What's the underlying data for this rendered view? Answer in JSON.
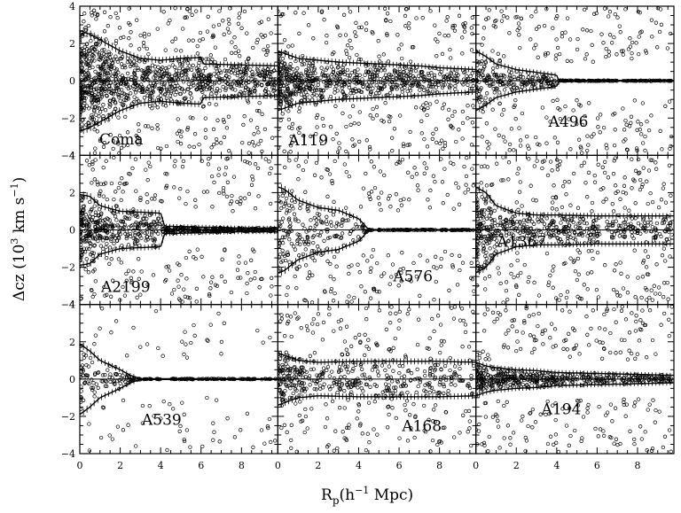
{
  "chart_data": {
    "type": "scatter",
    "layout": "3x3 grid of panels sharing axes",
    "xlabel": "R",
    "xlabel_subscript": "p",
    "xlabel_rest": "(h",
    "xlabel_sup": "−1",
    "xlabel_end": " Mpc)",
    "ylabel": "Δcz (10",
    "ylabel_sup1": "3",
    "ylabel_mid": " km s",
    "ylabel_sup2": "−1",
    "ylabel_end": ")",
    "xlim": [
      0,
      9.8
    ],
    "ylim": [
      -4,
      4
    ],
    "x_ticks": [
      "0",
      "2",
      "4",
      "6",
      "8"
    ],
    "y_ticks": [
      "4",
      "2",
      "0",
      "−2",
      "−4"
    ],
    "y_tick_values": [
      4,
      2,
      0,
      -2,
      -4
    ],
    "x_tick_values": [
      0,
      2,
      4,
      6,
      8
    ],
    "grid": false,
    "marker": "open circle",
    "panels": [
      {
        "name": "Coma",
        "label_pos": "mid-left",
        "caustic_r": [
          0,
          0.5,
          1,
          2,
          3,
          4,
          5,
          6,
          6.1,
          8,
          9.8
        ],
        "caustic_a": [
          2.7,
          2.5,
          2.2,
          1.6,
          1.2,
          1.1,
          1.2,
          1.25,
          0.9,
          0.85,
          0.8
        ],
        "point_count": 900,
        "bg_count": 260
      },
      {
        "name": "A119",
        "label_pos": "bottom-left",
        "caustic_r": [
          0,
          0.5,
          1,
          2,
          3,
          4,
          5,
          6,
          7,
          8,
          9.8
        ],
        "caustic_a": [
          1.6,
          1.4,
          1.2,
          1.1,
          1.0,
          0.95,
          0.9,
          0.85,
          0.8,
          0.7,
          0.6
        ],
        "point_count": 650,
        "bg_count": 220
      },
      {
        "name": "A496",
        "label_pos": "right",
        "caustic_r": [
          0,
          0.5,
          1,
          2,
          3,
          4,
          4.1,
          9.8
        ],
        "caustic_a": [
          1.6,
          1.3,
          0.9,
          0.6,
          0.45,
          0.3,
          0.02,
          0.02
        ],
        "point_count": 300,
        "bg_count": 230
      },
      {
        "name": "A2199",
        "label_pos": "bottom-left",
        "caustic_r": [
          0,
          0.5,
          1,
          2,
          3,
          4,
          4.2,
          6,
          8,
          9.8
        ],
        "caustic_a": [
          1.9,
          1.8,
          1.3,
          1.0,
          0.95,
          0.9,
          0.2,
          0.15,
          0.1,
          0.1
        ],
        "point_count": 600,
        "bg_count": 220
      },
      {
        "name": "A576",
        "label_pos": "bottom-right",
        "caustic_r": [
          0,
          0.3,
          1,
          2,
          3,
          4,
          4.5,
          9.8
        ],
        "caustic_a": [
          2.3,
          2.2,
          1.6,
          1.2,
          1.05,
          0.6,
          0.02,
          0.02
        ],
        "point_count": 260,
        "bg_count": 200
      },
      {
        "name": "A1367",
        "label_pos": "bottom-right",
        "caustic_r": [
          0,
          0.5,
          1,
          2,
          3,
          4,
          6,
          8,
          9.8
        ],
        "caustic_a": [
          2.3,
          2.0,
          1.3,
          0.9,
          0.8,
          0.8,
          0.75,
          0.75,
          0.75
        ],
        "point_count": 500,
        "bg_count": 230
      },
      {
        "name": "A539",
        "label_pos": "bottom-mid",
        "caustic_r": [
          0,
          0.5,
          1,
          2,
          2.5,
          3,
          9.8
        ],
        "caustic_a": [
          1.9,
          1.5,
          1.0,
          0.5,
          0.2,
          0.02,
          0.02
        ],
        "point_count": 200,
        "bg_count": 80
      },
      {
        "name": "A168",
        "label_pos": "bottom-right",
        "caustic_r": [
          0,
          0.5,
          1,
          2,
          4,
          6,
          8,
          9.8
        ],
        "caustic_a": [
          1.4,
          1.2,
          1.0,
          0.9,
          0.95,
          0.95,
          0.95,
          0.9
        ],
        "point_count": 380,
        "bg_count": 200
      },
      {
        "name": "A194",
        "label_pos": "bottom-mid",
        "caustic_r": [
          0,
          0.5,
          1,
          2,
          3,
          4,
          6,
          8,
          9.8
        ],
        "caustic_a": [
          0.9,
          0.7,
          0.6,
          0.5,
          0.45,
          0.35,
          0.3,
          0.25,
          0.2
        ],
        "point_count": 450,
        "bg_count": 230
      }
    ]
  }
}
